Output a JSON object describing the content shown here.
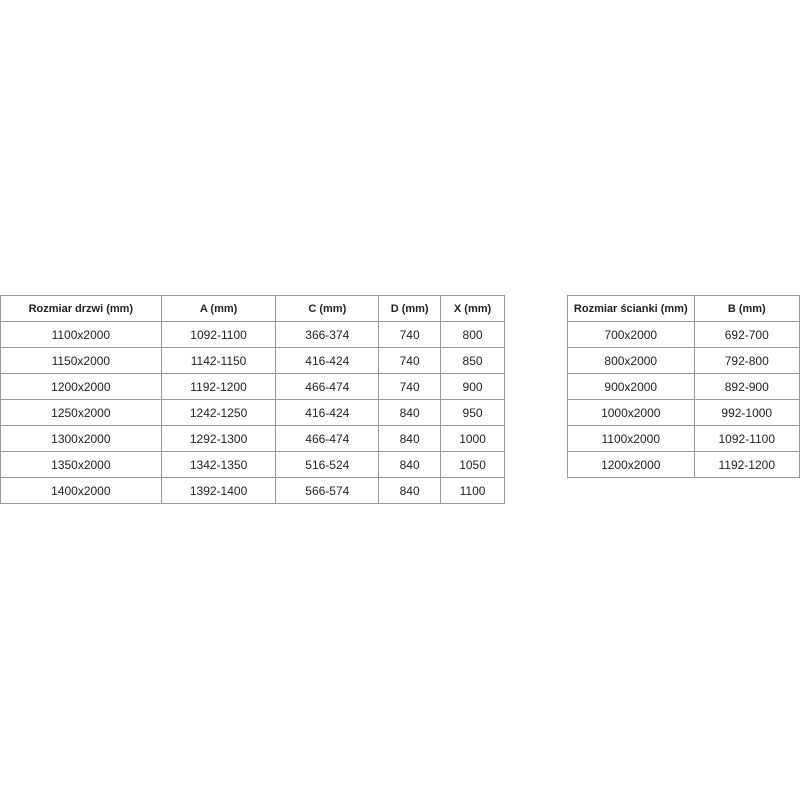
{
  "door_table": {
    "headers": [
      "Rozmiar drzwi (mm)",
      "A (mm)",
      "C (mm)",
      "D (mm)",
      "X (mm)"
    ],
    "rows": [
      [
        "1100x2000",
        "1092-1100",
        "366-374",
        "740",
        "800"
      ],
      [
        "1150x2000",
        "1142-1150",
        "416-424",
        "740",
        "850"
      ],
      [
        "1200x2000",
        "1192-1200",
        "466-474",
        "740",
        "900"
      ],
      [
        "1250x2000",
        "1242-1250",
        "416-424",
        "840",
        "950"
      ],
      [
        "1300x2000",
        "1292-1300",
        "466-474",
        "840",
        "1000"
      ],
      [
        "1350x2000",
        "1342-1350",
        "516-524",
        "840",
        "1050"
      ],
      [
        "1400x2000",
        "1392-1400",
        "566-574",
        "840",
        "1100"
      ]
    ]
  },
  "wall_table": {
    "headers": [
      "Rozmiar ścianki (mm)",
      "B (mm)"
    ],
    "rows": [
      [
        "700x2000",
        "692-700"
      ],
      [
        "800x2000",
        "792-800"
      ],
      [
        "900x2000",
        "892-900"
      ],
      [
        "1000x2000",
        "992-1000"
      ],
      [
        "1100x2000",
        "1092-1100"
      ],
      [
        "1200x2000",
        "1192-1200"
      ]
    ]
  }
}
